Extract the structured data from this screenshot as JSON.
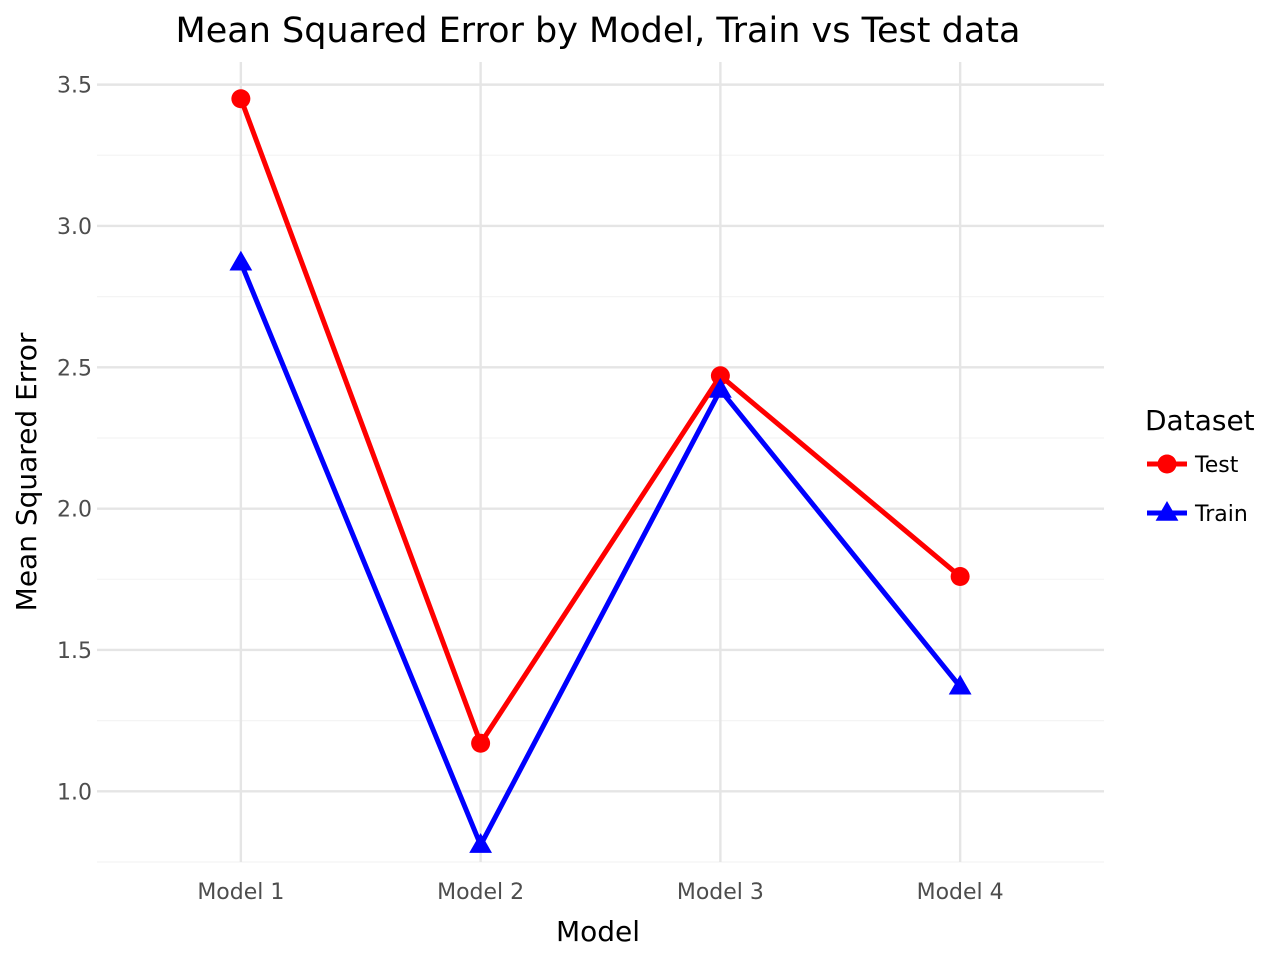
{
  "chart_data": {
    "type": "line",
    "title": "Mean Squared Error by Model, Train vs Test data",
    "xlabel": "Model",
    "ylabel": "Mean Squared Error",
    "categories": [
      "Model 1",
      "Model 2",
      "Model 3",
      "Model 4"
    ],
    "y_ticks": [
      "1.0",
      "1.5",
      "2.0",
      "2.5",
      "3.0",
      "3.5"
    ],
    "y_tick_values": [
      1.0,
      1.5,
      2.0,
      2.5,
      3.0,
      3.5
    ],
    "ylim": [
      0.75,
      3.58
    ],
    "grid": true,
    "legend": {
      "title": "Dataset",
      "placement": "right"
    },
    "series": [
      {
        "name": "Test",
        "values": [
          3.45,
          1.17,
          2.47,
          1.76
        ],
        "color": "#ff0000",
        "marker": "circle"
      },
      {
        "name": "Train",
        "values": [
          2.87,
          0.81,
          2.42,
          1.37
        ],
        "color": "#0000ff",
        "marker": "triangle"
      }
    ]
  }
}
